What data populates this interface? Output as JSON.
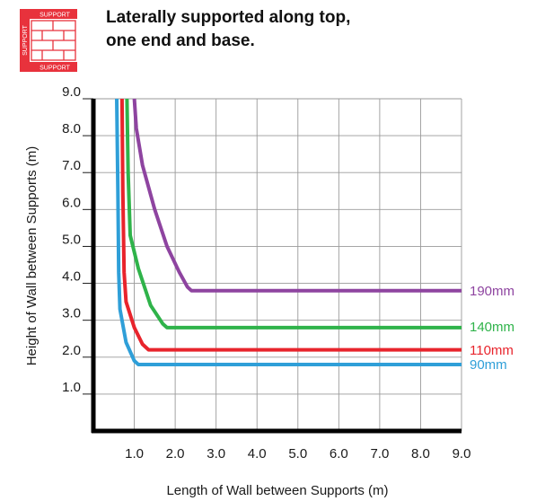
{
  "header": {
    "title_line1": "Laterally supported along top,",
    "title_line2": "one end and base.",
    "icon": {
      "name": "brick-wall-support-icon",
      "label_top": "SUPPORT",
      "label_left": "SUPPORT",
      "label_bottom": "SUPPORT",
      "color": "#e8323c"
    }
  },
  "chart_data": {
    "type": "line",
    "title": "Laterally supported along top, one end and base.",
    "xlabel": "Length of Wall between Supports (m)",
    "ylabel": "Height of Wall between Supports (m)",
    "xlim": [
      0,
      9
    ],
    "ylim": [
      0,
      9
    ],
    "xticks": [
      "1.0",
      "2.0",
      "3.0",
      "4.0",
      "5.0",
      "6.0",
      "7.0",
      "8.0",
      "9.0"
    ],
    "yticks": [
      "1.0",
      "2.0",
      "3.0",
      "4.0",
      "5.0",
      "6.0",
      "7.0",
      "8.0",
      "9.0"
    ],
    "grid": true,
    "series": [
      {
        "name": "190mm",
        "color": "#8e44a0",
        "x": [
          1.0,
          1.05,
          1.2,
          1.5,
          1.8,
          2.1,
          2.3,
          2.4,
          9.0
        ],
        "y": [
          9.0,
          8.2,
          7.2,
          6.0,
          5.0,
          4.3,
          3.9,
          3.8,
          3.8
        ]
      },
      {
        "name": "140mm",
        "color": "#2fb34a",
        "x": [
          0.82,
          0.85,
          0.9,
          1.1,
          1.4,
          1.7,
          1.8,
          9.0
        ],
        "y": [
          9.0,
          7.0,
          5.3,
          4.4,
          3.4,
          2.9,
          2.8,
          2.8
        ]
      },
      {
        "name": "110mm",
        "color": "#e8242c",
        "x": [
          0.7,
          0.72,
          0.75,
          0.8,
          1.0,
          1.2,
          1.35,
          9.0
        ],
        "y": [
          9.0,
          6.5,
          4.3,
          3.5,
          2.8,
          2.35,
          2.2,
          2.2
        ]
      },
      {
        "name": "90mm",
        "color": "#2f9fd8",
        "x": [
          0.57,
          0.6,
          0.62,
          0.65,
          0.8,
          1.0,
          1.1,
          9.0
        ],
        "y": [
          9.0,
          6.5,
          4.3,
          3.3,
          2.4,
          1.9,
          1.8,
          1.8
        ]
      }
    ]
  }
}
